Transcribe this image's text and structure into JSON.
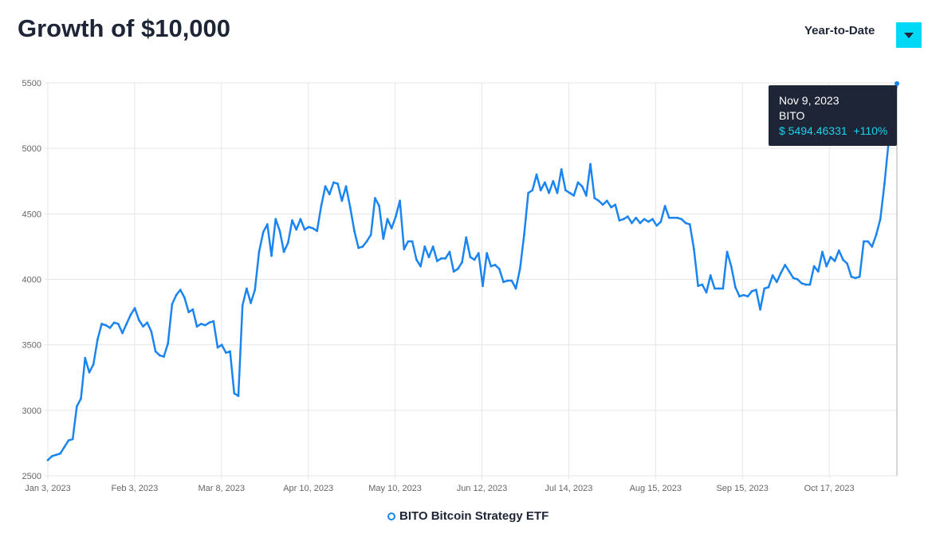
{
  "header": {
    "title": "Growth of $10,000",
    "period_select": "Year-to-Date",
    "dropdown_icon": "caret-down-icon",
    "accent": "#00d9f5"
  },
  "tooltip": {
    "date": "Nov 9, 2023",
    "ticker": "BITO",
    "value": "$ 5494.46331",
    "change": "+110%"
  },
  "legend": {
    "label": "BITO Bitcoin Strategy ETF"
  },
  "chart_data": {
    "type": "line",
    "title": "Growth of $10,000",
    "xlabel": "",
    "ylabel": "",
    "ylim": [
      2500,
      5500
    ],
    "yticks": [
      2500,
      3000,
      3500,
      4000,
      4500,
      5000,
      5500
    ],
    "xticks": [
      "Jan 3, 2023",
      "Feb 3, 2023",
      "Mar 8, 2023",
      "Apr 10, 2023",
      "May 10, 2023",
      "Jun 12, 2023",
      "Jul 14, 2023",
      "Aug 15, 2023",
      "Sep 15, 2023",
      "Oct 17, 2023"
    ],
    "x_range": [
      "Jan 3, 2023",
      "Nov 9, 2023"
    ],
    "grid": true,
    "legend_position": "bottom",
    "series": [
      {
        "name": "BITO Bitcoin Strategy ETF",
        "color": "#1a85f0",
        "values": [
          2620,
          2650,
          2660,
          2670,
          2720,
          2770,
          2780,
          3030,
          3090,
          3400,
          3290,
          3350,
          3540,
          3660,
          3650,
          3630,
          3670,
          3660,
          3590,
          3660,
          3730,
          3780,
          3690,
          3640,
          3670,
          3600,
          3450,
          3420,
          3410,
          3510,
          3810,
          3880,
          3920,
          3860,
          3750,
          3770,
          3640,
          3660,
          3650,
          3670,
          3680,
          3480,
          3500,
          3440,
          3450,
          3130,
          3110,
          3800,
          3930,
          3820,
          3920,
          4210,
          4360,
          4420,
          4180,
          4460,
          4370,
          4210,
          4280,
          4450,
          4380,
          4460,
          4380,
          4400,
          4390,
          4370,
          4560,
          4710,
          4650,
          4740,
          4730,
          4600,
          4710,
          4550,
          4370,
          4240,
          4250,
          4290,
          4340,
          4620,
          4560,
          4310,
          4460,
          4390,
          4480,
          4600,
          4230,
          4290,
          4290,
          4150,
          4100,
          4250,
          4170,
          4250,
          4140,
          4160,
          4160,
          4210,
          4060,
          4080,
          4130,
          4320,
          4170,
          4150,
          4200,
          3950,
          4200,
          4100,
          4110,
          4080,
          3980,
          3990,
          3990,
          3930,
          4080,
          4340,
          4660,
          4680,
          4800,
          4680,
          4740,
          4660,
          4750,
          4660,
          4840,
          4680,
          4660,
          4640,
          4740,
          4710,
          4640,
          4880,
          4620,
          4600,
          4570,
          4600,
          4550,
          4570,
          4450,
          4460,
          4480,
          4430,
          4470,
          4430,
          4460,
          4440,
          4460,
          4410,
          4440,
          4560,
          4470,
          4470,
          4470,
          4460,
          4430,
          4420,
          4230,
          3950,
          3960,
          3900,
          4030,
          3930,
          3930,
          3930,
          4210,
          4100,
          3940,
          3870,
          3880,
          3870,
          3910,
          3920,
          3770,
          3930,
          3940,
          4030,
          3980,
          4050,
          4110,
          4060,
          4010,
          4000,
          3970,
          3960,
          3960,
          4100,
          4060,
          4210,
          4100,
          4170,
          4140,
          4220,
          4150,
          4120,
          4020,
          4010,
          4020,
          4290,
          4290,
          4250,
          4340,
          4460,
          4730,
          5050,
          5300,
          5494.46331
        ]
      }
    ]
  }
}
